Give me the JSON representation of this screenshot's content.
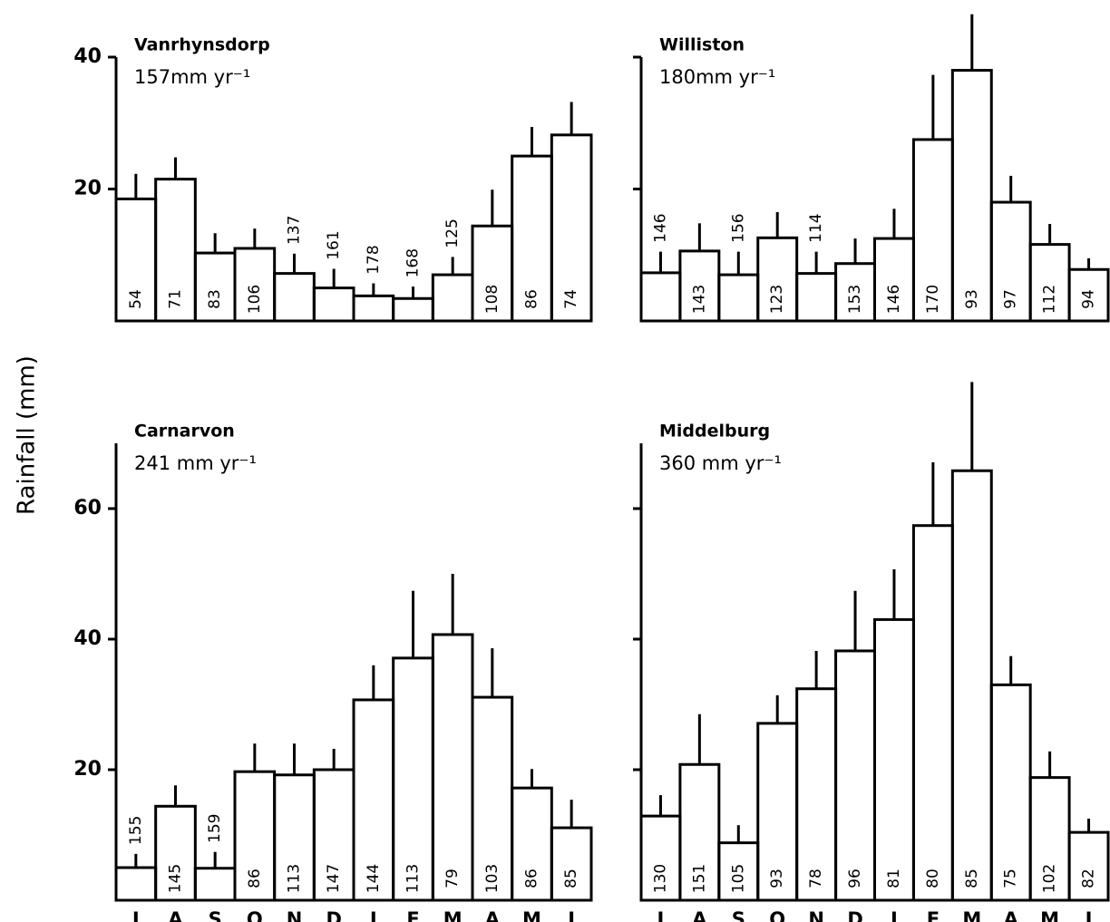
{
  "y_label": "Rainfall (mm)",
  "chart_data": [
    {
      "type": "bar",
      "title": "Vanrhynsdorp",
      "subtitle": "157mm yr⁻¹",
      "values": [
        18.5,
        21.5,
        10.3,
        11,
        7.2,
        5,
        3.8,
        3.4,
        7,
        14.4,
        25,
        28.2
      ],
      "errors": [
        3.8,
        3.3,
        3,
        3,
        3,
        2.9,
        1.9,
        1.8,
        2.7,
        5.5,
        4.4,
        5
      ],
      "bar_labels": [
        "54",
        "71",
        "83",
        "106",
        "137",
        "161",
        "178",
        "168",
        "125",
        "108",
        "86",
        "74"
      ],
      "ylim": [
        0,
        40
      ],
      "yticks": [
        20,
        40
      ]
    },
    {
      "type": "bar",
      "title": "Williston",
      "subtitle": "180mm yr⁻¹",
      "values": [
        7.3,
        10.6,
        7,
        12.6,
        7.2,
        8.7,
        12.5,
        27.5,
        38,
        18,
        11.6,
        7.8
      ],
      "errors": [
        3.2,
        4.2,
        3.5,
        3.9,
        3.3,
        3.8,
        4.5,
        9.8,
        8.5,
        4,
        3.1,
        1.7
      ],
      "bar_labels": [
        "146",
        "143",
        "156",
        "123",
        "114",
        "153",
        "146",
        "170",
        "93",
        "97",
        "112",
        "94"
      ],
      "ylim": [
        0,
        40
      ],
      "yticks": [
        20,
        40
      ]
    },
    {
      "type": "bar",
      "title": "Carnarvon",
      "subtitle": "241 mm yr⁻¹",
      "categories": [
        "J",
        "A",
        "S",
        "O",
        "N",
        "D",
        "J",
        "F",
        "M",
        "A",
        "M",
        "J"
      ],
      "values": [
        5,
        14.4,
        4.9,
        19.7,
        19.2,
        20,
        30.7,
        37.1,
        40.7,
        31.1,
        17.2,
        11.1
      ],
      "errors": [
        2.1,
        3.2,
        2.5,
        4.3,
        4.8,
        3.2,
        5.3,
        10.3,
        9.3,
        7.5,
        2.9,
        4.3
      ],
      "bar_labels": [
        "155",
        "145",
        "159",
        "86",
        "113",
        "147",
        "144",
        "113",
        "79",
        "103",
        "86",
        "85"
      ],
      "ylim": [
        0,
        70
      ],
      "yticks": [
        20,
        40,
        60
      ]
    },
    {
      "type": "bar",
      "title": "Middelburg",
      "subtitle": "360 mm yr⁻¹",
      "categories": [
        "J",
        "A",
        "S",
        "O",
        "N",
        "D",
        "J",
        "F",
        "M",
        "A",
        "M",
        "J"
      ],
      "values": [
        12.9,
        20.8,
        8.8,
        27.1,
        32.4,
        38.2,
        43,
        57.4,
        65.8,
        33,
        18.8,
        10.4
      ],
      "errors": [
        3.2,
        7.7,
        2.7,
        4.3,
        5.8,
        9.2,
        7.7,
        9.7,
        13.6,
        4.4,
        4,
        2.1
      ],
      "bar_labels": [
        "130",
        "151",
        "105",
        "93",
        "78",
        "96",
        "81",
        "80",
        "85",
        "75",
        "102",
        "82"
      ],
      "ylim": [
        0,
        70
      ],
      "yticks": [
        20,
        40,
        60
      ]
    }
  ]
}
